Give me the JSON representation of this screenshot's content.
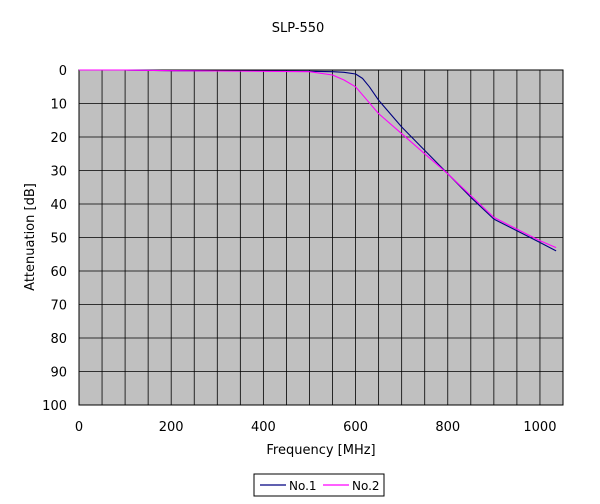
{
  "chart_data": {
    "type": "line",
    "title": "SLP-550",
    "xlabel": "Frequency [MHz]",
    "ylabel": "Attenuation [dB]",
    "xlim": [
      0,
      1050
    ],
    "ylim": [
      0,
      100
    ],
    "y_inverted": true,
    "x_ticks": [
      0,
      200,
      400,
      600,
      800,
      1000
    ],
    "y_ticks": [
      0,
      10,
      20,
      30,
      40,
      50,
      60,
      70,
      80,
      90,
      100
    ],
    "x_minor_step": 50,
    "grid": true,
    "legend_position": "bottom-center",
    "series": [
      {
        "name": "No.1",
        "color": "#000080",
        "x": [
          0,
          100,
          200,
          300,
          400,
          500,
          550,
          575,
          600,
          615,
          630,
          650,
          700,
          750,
          800,
          850,
          900,
          950,
          1000,
          1035
        ],
        "y": [
          0,
          0,
          0.2,
          0.3,
          0.3,
          0.4,
          0.5,
          0.7,
          1.2,
          2.5,
          5,
          9,
          17,
          24,
          31,
          38,
          44.5,
          48,
          51.5,
          54
        ]
      },
      {
        "name": "No.2",
        "color": "#ff00ff",
        "x": [
          0,
          100,
          200,
          300,
          400,
          500,
          550,
          575,
          600,
          625,
          650,
          700,
          750,
          800,
          850,
          900,
          950,
          1000,
          1035
        ],
        "y": [
          0,
          0,
          0.2,
          0.3,
          0.4,
          0.5,
          1.5,
          3,
          5,
          9,
          13,
          19,
          25,
          31,
          37.5,
          44,
          47.5,
          51,
          53
        ]
      }
    ]
  },
  "colors": {
    "plot_background": "#c0c0c0",
    "grid": "#000000",
    "axis": "#000000"
  }
}
